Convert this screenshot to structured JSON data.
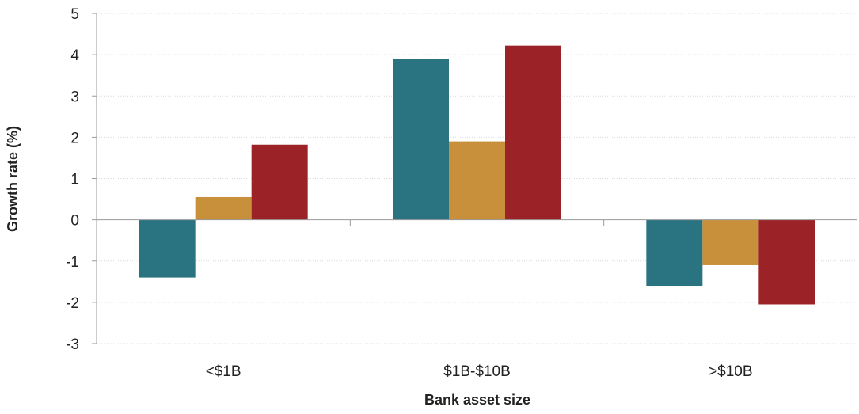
{
  "chart_data": {
    "type": "bar",
    "title": "",
    "xlabel": "Bank asset size",
    "ylabel": "Growth rate (%)",
    "categories": [
      "<$1B",
      "$1B-$10B",
      ">$10B"
    ],
    "y_ticks": [
      "5",
      "4",
      "3",
      "2",
      "1",
      "0",
      "-1",
      "-2",
      "-3"
    ],
    "ylim": [
      -3,
      5
    ],
    "grid": true,
    "legend": "none",
    "series": [
      {
        "color": "#2a7482",
        "values": [
          -1.4,
          3.9,
          -1.6
        ]
      },
      {
        "color": "#c8903a",
        "values": [
          0.55,
          1.9,
          -1.1
        ]
      },
      {
        "color": "#9b2226",
        "values": [
          1.82,
          4.22,
          -2.05
        ]
      }
    ]
  }
}
